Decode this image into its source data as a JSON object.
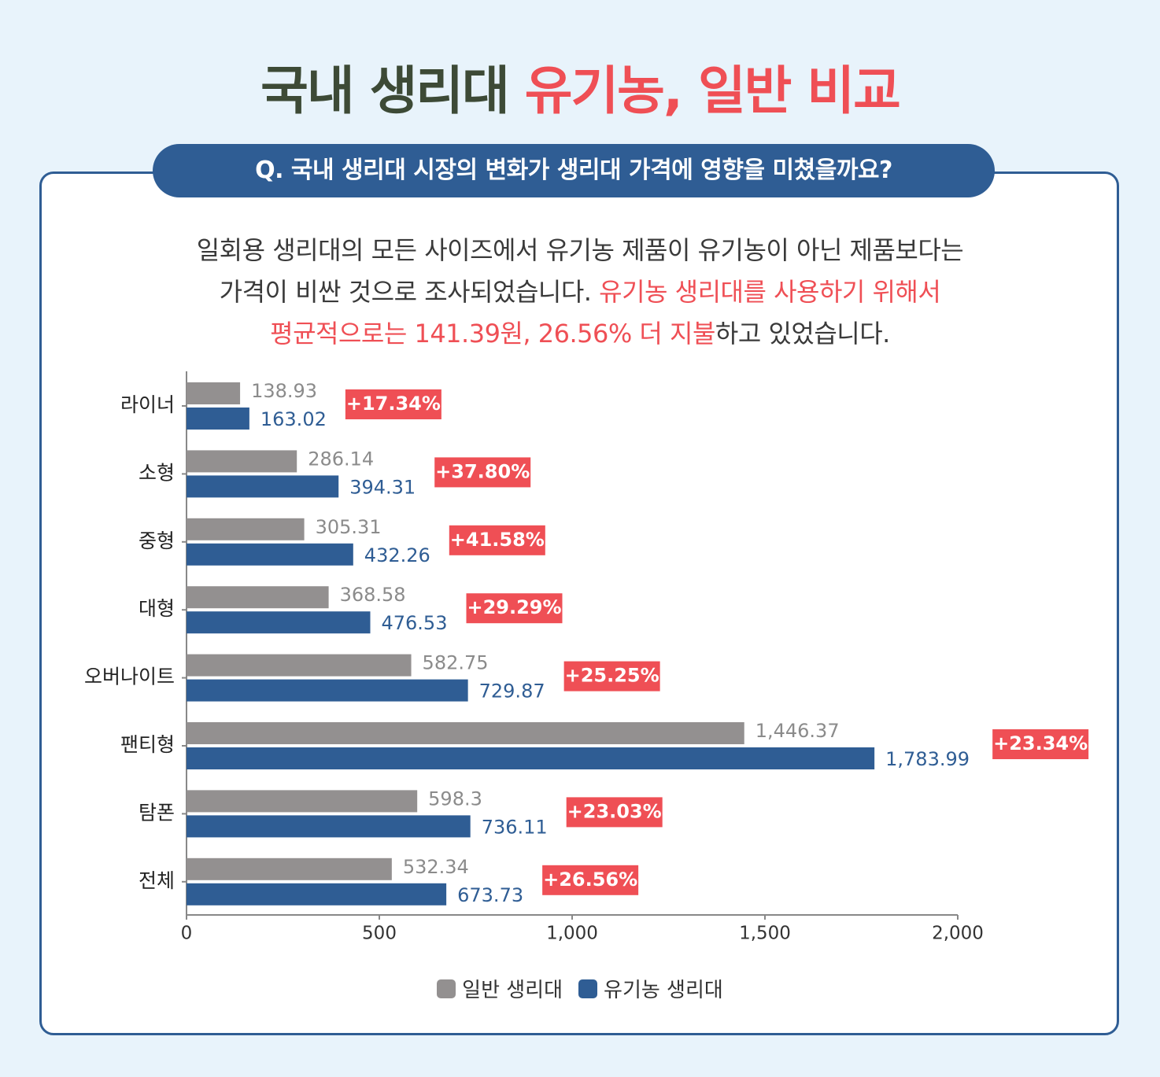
{
  "header": {
    "title_main": "국내 생리대 ",
    "title_accent": "유기농, 일반 비교"
  },
  "question": "Q. 국내 생리대 시장의 변화가 생리대 가격에 영향을 미쳤을까요?",
  "description": {
    "line1": "일회용 생리대의 모든 사이즈에서 유기농 제품이 유기농이 아닌 제품보다는",
    "line2_plain": "가격이 비싼 것으로 조사되었습니다. ",
    "line2_red": "유기농 생리대를 사용하기 위해서",
    "line3_red": "평균적으로는 141.39원, 26.56% 더 지불",
    "line3_plain": "하고 있었습니다."
  },
  "colors": {
    "regular": "#939090",
    "organic": "#2f5d94",
    "badge": "#ef4f55",
    "title": "#3d4a36"
  },
  "chart_data": {
    "type": "bar",
    "orientation": "horizontal",
    "categories": [
      "라이너",
      "소형",
      "중형",
      "대형",
      "오버나이트",
      "팬티형",
      "탐폰",
      "전체"
    ],
    "series": [
      {
        "name": "일반 생리대",
        "values": [
          138.93,
          286.14,
          305.31,
          368.58,
          582.75,
          1446.37,
          598.3,
          532.34
        ],
        "labels": [
          "138.93",
          "286.14",
          "305.31",
          "368.58",
          "582.75",
          "1,446.37",
          "598.3",
          "532.34"
        ]
      },
      {
        "name": "유기농 생리대",
        "values": [
          163.02,
          394.31,
          432.26,
          476.53,
          729.87,
          1783.99,
          736.11,
          673.73
        ],
        "labels": [
          "163.02",
          "394.31",
          "432.26",
          "476.53",
          "729.87",
          "1,783.99",
          "736.11",
          "673.73"
        ]
      }
    ],
    "differences": [
      "+17.34%",
      "+37.80%",
      "+41.58%",
      "+29.29%",
      "+25.25%",
      "+23.34%",
      "+23.03%",
      "+26.56%"
    ],
    "xlim": [
      0,
      2000
    ],
    "xticks": [
      0,
      500,
      1000,
      1500,
      2000
    ],
    "xtick_labels": [
      "0",
      "500",
      "1,000",
      "1,500",
      "2,000"
    ],
    "grid": false,
    "legend_position": "bottom"
  }
}
